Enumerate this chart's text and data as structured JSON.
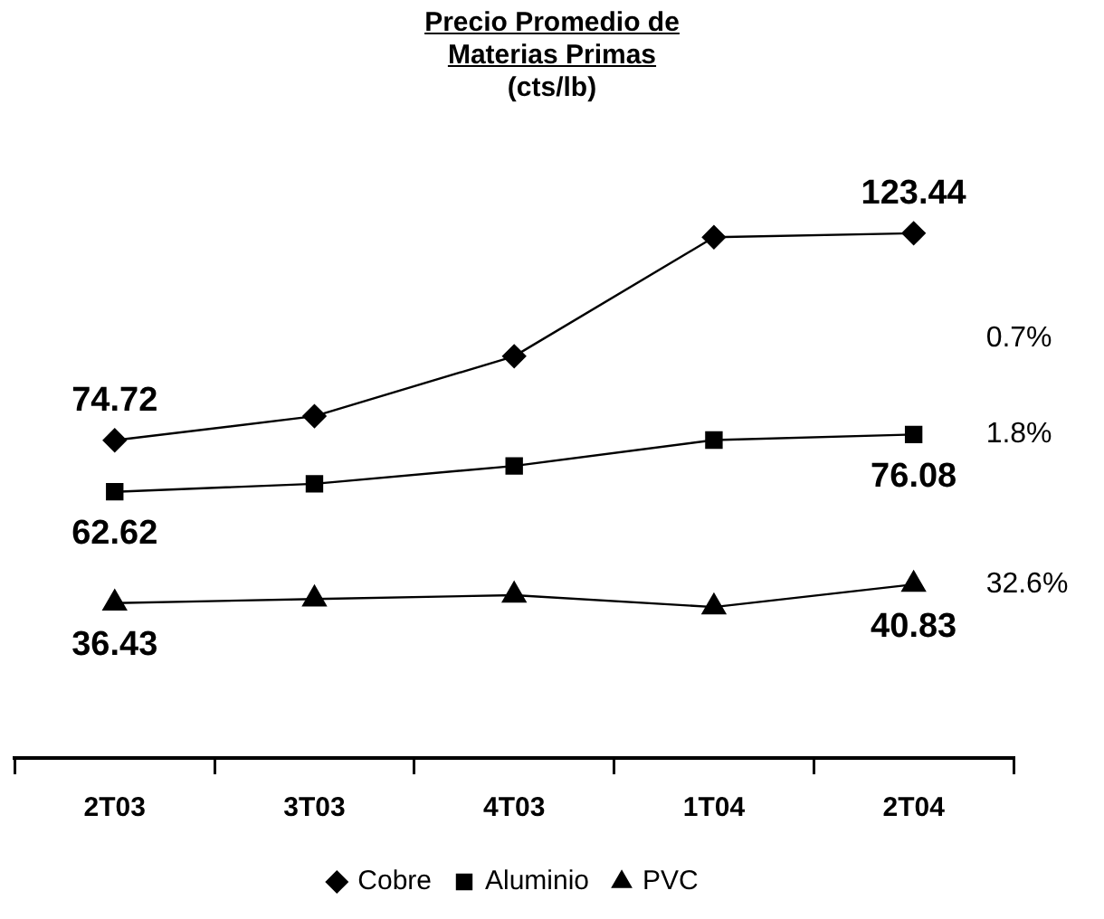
{
  "chart_data": {
    "type": "line",
    "title": "Precio Promedio de Materias Primas",
    "subtitle": "(cts/lb)",
    "categories": [
      "2T03",
      "3T03",
      "4T03",
      "1T04",
      "2T04"
    ],
    "legend": "bottom",
    "grid": false,
    "tick_labels": "x",
    "series": [
      {
        "name": "Cobre",
        "color": "#000000",
        "marker": "diamond",
        "values": [
          74.72,
          80.4,
          94.5,
          122.5,
          123.44
        ],
        "value_labels": [
          "74.72",
          null,
          null,
          null,
          "123.44"
        ]
      },
      {
        "name": "Aluminio",
        "color": "#000000",
        "marker": "square",
        "values": [
          62.62,
          64.5,
          68.7,
          74.8,
          76.08
        ],
        "value_labels": [
          "62.62",
          null,
          null,
          null,
          "76.08"
        ]
      },
      {
        "name": "PVC",
        "color": "#000000",
        "marker": "triangle",
        "values": [
          36.43,
          37.4,
          38.3,
          35.5,
          40.83
        ],
        "value_labels": [
          "36.43",
          null,
          null,
          null,
          "40.83"
        ]
      }
    ],
    "annotations": [
      "0.7%",
      "1.8%",
      "32.6%"
    ]
  }
}
